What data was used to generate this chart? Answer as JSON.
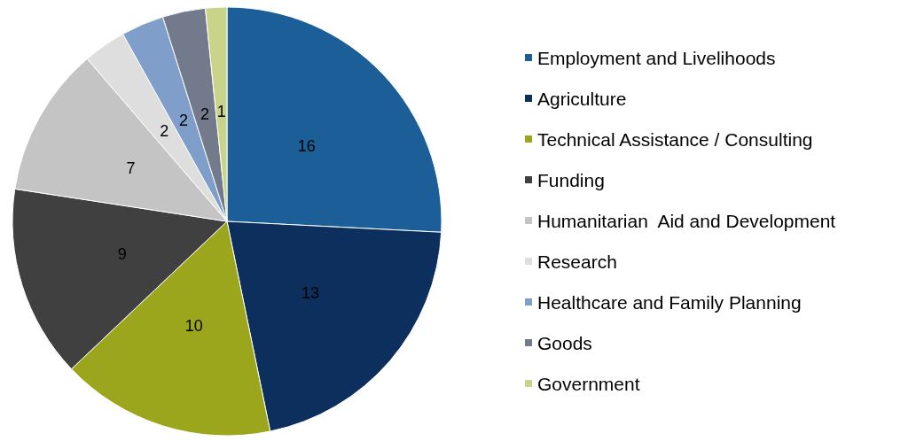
{
  "chart_data": {
    "type": "pie",
    "categories": [
      "Employment and Livelihoods",
      "Agriculture",
      "Technical Assistance / Consulting",
      "Funding",
      "Humanitarian  Aid and Development",
      "Research",
      "Healthcare and Family Planning",
      "Goods",
      "Government"
    ],
    "values": [
      16,
      13,
      10,
      9,
      7,
      2,
      2,
      2,
      1
    ],
    "colors": [
      "#1c5f98",
      "#0c2f5e",
      "#9ba61c",
      "#404040",
      "#c4c4c4",
      "#dedede",
      "#7f9fca",
      "#737a8c",
      "#c9d48a"
    ],
    "data_labels": true,
    "legend": "right"
  }
}
